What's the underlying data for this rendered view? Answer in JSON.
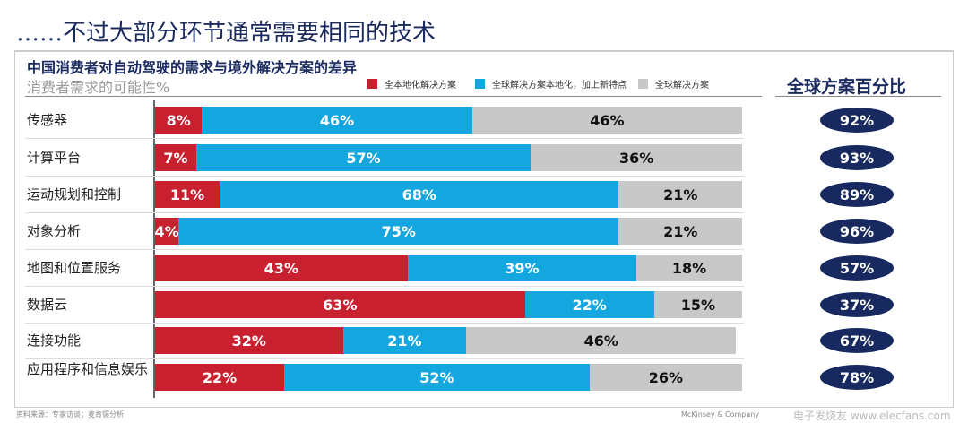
{
  "title": "……不过大部分环节通常需要相同的技术",
  "chart_data": {
    "type": "bar",
    "stacked": true,
    "orientation": "horizontal",
    "title": "中国消费者对自动驾驶的需求与境外解决方案的差异",
    "subtitle": "消费者需求的可能性%",
    "categories": [
      "传感器",
      "计算平台",
      "运动规划和控制",
      "对象分析",
      "地图和位置服务",
      "数据云",
      "连接功能",
      "应用程序和信息娱乐"
    ],
    "series": [
      {
        "name": "全本地化解决方案",
        "color": "#c8202f",
        "values": [
          8,
          7,
          11,
          4,
          43,
          63,
          32,
          22
        ]
      },
      {
        "name": "全球解决方案本地化，加上新特点",
        "color": "#14a6df",
        "values": [
          46,
          57,
          68,
          75,
          39,
          22,
          21,
          52
        ]
      },
      {
        "name": "全球解决方案",
        "color": "#c8c8c8",
        "values": [
          46,
          36,
          21,
          21,
          18,
          15,
          46,
          26
        ]
      }
    ],
    "xlim": [
      0,
      100
    ],
    "right_column": {
      "title": "全球方案百分比",
      "values": [
        "92%",
        "93%",
        "89%",
        "96%",
        "57%",
        "37%",
        "67%",
        "78%"
      ],
      "color": "#17295e"
    }
  },
  "footer": "资料来源：专家访谈；麦肯锡分析",
  "brand": "McKinsey & Company",
  "watermark": "电子发烧友 www.elecfans.com"
}
